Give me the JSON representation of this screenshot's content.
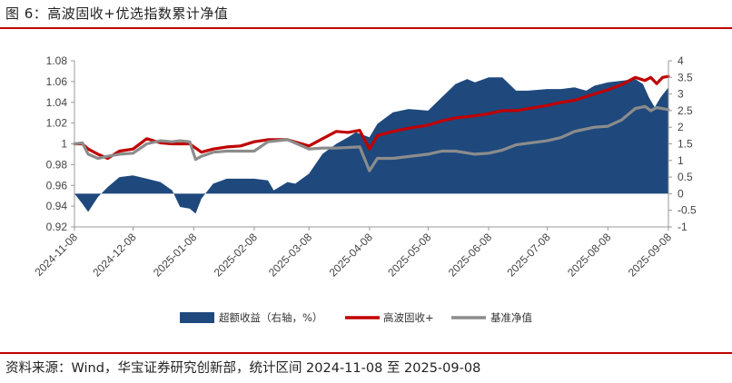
{
  "title": "图 6：高波固收+优选指数累计净值",
  "source": "资料来源：Wind，华宝证券研究创新部，统计区间 2024-11-08 至 2025-09-08",
  "colors": {
    "excess": "#1f497d",
    "fund": "#c00000",
    "benchmark": "#8c8c8c",
    "accent": "#c00000"
  },
  "chart_data": {
    "type": "line",
    "x_ticks": [
      "2024-11-08",
      "2024-12-08",
      "2025-01-08",
      "2025-02-08",
      "2025-03-08",
      "2025-04-08",
      "2025-05-08",
      "2025-06-08",
      "2025-07-08",
      "2025-08-08",
      "2025-09-08"
    ],
    "y_left": {
      "ylim": [
        0.92,
        1.08
      ],
      "ticks": [
        "0.92",
        "0.94",
        "0.96",
        "0.98",
        "1",
        "1.02",
        "1.04",
        "1.06",
        "1.08"
      ]
    },
    "y_right": {
      "ylim": [
        -1,
        4
      ],
      "ticks": [
        "-1",
        "-0.5",
        "0",
        "0.5",
        "1",
        "1.5",
        "2",
        "2.5",
        "3",
        "3.5",
        "4"
      ]
    },
    "series": [
      {
        "name": "超额收益（右轴，%）",
        "type": "area",
        "axis": "right",
        "points": [
          [
            "2024-11-08",
            0
          ],
          [
            "2024-11-12",
            -0.3
          ],
          [
            "2024-11-15",
            -0.55
          ],
          [
            "2024-11-20",
            -0.1
          ],
          [
            "2024-11-25",
            0.2
          ],
          [
            "2024-12-01",
            0.5
          ],
          [
            "2024-12-08",
            0.55
          ],
          [
            "2024-12-15",
            0.45
          ],
          [
            "2024-12-22",
            0.35
          ],
          [
            "2024-12-28",
            0.1
          ],
          [
            "2025-01-01",
            -0.4
          ],
          [
            "2025-01-06",
            -0.45
          ],
          [
            "2025-01-09",
            -0.6
          ],
          [
            "2025-01-12",
            -0.15
          ],
          [
            "2025-01-18",
            0.3
          ],
          [
            "2025-01-25",
            0.45
          ],
          [
            "2025-02-01",
            0.45
          ],
          [
            "2025-02-08",
            0.45
          ],
          [
            "2025-02-15",
            0.4
          ],
          [
            "2025-02-18",
            0.1
          ],
          [
            "2025-02-25",
            0.35
          ],
          [
            "2025-03-01",
            0.3
          ],
          [
            "2025-03-08",
            0.6
          ],
          [
            "2025-03-15",
            1.2
          ],
          [
            "2025-03-22",
            1.5
          ],
          [
            "2025-03-28",
            1.7
          ],
          [
            "2025-04-01",
            1.85
          ],
          [
            "2025-04-08",
            1.7
          ],
          [
            "2025-04-12",
            2.1
          ],
          [
            "2025-04-20",
            2.45
          ],
          [
            "2025-04-28",
            2.55
          ],
          [
            "2025-05-08",
            2.5
          ],
          [
            "2025-05-15",
            2.9
          ],
          [
            "2025-05-22",
            3.3
          ],
          [
            "2025-05-28",
            3.45
          ],
          [
            "2025-06-01",
            3.35
          ],
          [
            "2025-06-08",
            3.5
          ],
          [
            "2025-06-15",
            3.5
          ],
          [
            "2025-06-22",
            3.1
          ],
          [
            "2025-06-28",
            3.1
          ],
          [
            "2025-07-08",
            3.15
          ],
          [
            "2025-07-15",
            3.15
          ],
          [
            "2025-07-22",
            3.2
          ],
          [
            "2025-07-28",
            3.1
          ],
          [
            "2025-08-01",
            3.25
          ],
          [
            "2025-08-08",
            3.35
          ],
          [
            "2025-08-15",
            3.4
          ],
          [
            "2025-08-22",
            3.45
          ],
          [
            "2025-08-26",
            3.3
          ],
          [
            "2025-08-29",
            2.9
          ],
          [
            "2025-09-01",
            2.6
          ],
          [
            "2025-09-04",
            2.9
          ],
          [
            "2025-09-08",
            3.2
          ]
        ]
      },
      {
        "name": "高波固收+",
        "type": "line",
        "axis": "left",
        "points": [
          [
            "2024-11-08",
            1.0
          ],
          [
            "2024-11-12",
            1.0
          ],
          [
            "2024-11-15",
            0.995
          ],
          [
            "2024-11-20",
            0.99
          ],
          [
            "2024-11-25",
            0.986
          ],
          [
            "2024-12-01",
            0.993
          ],
          [
            "2024-12-08",
            0.995
          ],
          [
            "2024-12-15",
            1.005
          ],
          [
            "2024-12-22",
            1.001
          ],
          [
            "2024-12-28",
            1.0
          ],
          [
            "2025-01-06",
            1.0
          ],
          [
            "2025-01-12",
            0.992
          ],
          [
            "2025-01-18",
            0.995
          ],
          [
            "2025-01-25",
            0.997
          ],
          [
            "2025-02-01",
            0.998
          ],
          [
            "2025-02-08",
            1.002
          ],
          [
            "2025-02-15",
            1.004
          ],
          [
            "2025-02-25",
            1.004
          ],
          [
            "2025-03-08",
            0.998
          ],
          [
            "2025-03-15",
            1.005
          ],
          [
            "2025-03-22",
            1.012
          ],
          [
            "2025-03-28",
            1.011
          ],
          [
            "2025-04-03",
            1.013
          ],
          [
            "2025-04-08",
            0.995
          ],
          [
            "2025-04-12",
            1.008
          ],
          [
            "2025-04-20",
            1.012
          ],
          [
            "2025-04-28",
            1.015
          ],
          [
            "2025-05-08",
            1.018
          ],
          [
            "2025-05-15",
            1.022
          ],
          [
            "2025-05-22",
            1.025
          ],
          [
            "2025-06-01",
            1.027
          ],
          [
            "2025-06-08",
            1.029
          ],
          [
            "2025-06-15",
            1.032
          ],
          [
            "2025-06-22",
            1.032
          ],
          [
            "2025-07-08",
            1.037
          ],
          [
            "2025-07-15",
            1.04
          ],
          [
            "2025-07-22",
            1.042
          ],
          [
            "2025-08-01",
            1.048
          ],
          [
            "2025-08-08",
            1.052
          ],
          [
            "2025-08-15",
            1.057
          ],
          [
            "2025-08-22",
            1.064
          ],
          [
            "2025-08-27",
            1.061
          ],
          [
            "2025-08-30",
            1.064
          ],
          [
            "2025-09-02",
            1.058
          ],
          [
            "2025-09-05",
            1.064
          ],
          [
            "2025-09-08",
            1.065
          ]
        ]
      },
      {
        "name": "基准净值",
        "type": "line",
        "axis": "left",
        "points": [
          [
            "2024-11-08",
            1.0
          ],
          [
            "2024-11-12",
            1.001
          ],
          [
            "2024-11-15",
            0.99
          ],
          [
            "2024-11-20",
            0.986
          ],
          [
            "2024-11-25",
            0.988
          ],
          [
            "2024-12-01",
            0.99
          ],
          [
            "2024-12-08",
            0.991
          ],
          [
            "2024-12-15",
            1.0
          ],
          [
            "2024-12-22",
            1.003
          ],
          [
            "2024-12-28",
            1.002
          ],
          [
            "2025-01-01",
            1.003
          ],
          [
            "2025-01-06",
            1.002
          ],
          [
            "2025-01-09",
            0.985
          ],
          [
            "2025-01-12",
            0.988
          ],
          [
            "2025-01-18",
            0.992
          ],
          [
            "2025-01-25",
            0.993
          ],
          [
            "2025-02-08",
            0.993
          ],
          [
            "2025-02-15",
            1.002
          ],
          [
            "2025-02-25",
            1.004
          ],
          [
            "2025-03-08",
            0.995
          ],
          [
            "2025-03-15",
            0.996
          ],
          [
            "2025-03-22",
            0.996
          ],
          [
            "2025-04-03",
            0.997
          ],
          [
            "2025-04-08",
            0.974
          ],
          [
            "2025-04-12",
            0.986
          ],
          [
            "2025-04-20",
            0.986
          ],
          [
            "2025-05-08",
            0.99
          ],
          [
            "2025-05-15",
            0.993
          ],
          [
            "2025-05-22",
            0.993
          ],
          [
            "2025-06-01",
            0.99
          ],
          [
            "2025-06-08",
            0.991
          ],
          [
            "2025-06-15",
            0.994
          ],
          [
            "2025-06-22",
            0.999
          ],
          [
            "2025-07-08",
            1.003
          ],
          [
            "2025-07-15",
            1.006
          ],
          [
            "2025-07-22",
            1.012
          ],
          [
            "2025-08-01",
            1.016
          ],
          [
            "2025-08-08",
            1.017
          ],
          [
            "2025-08-15",
            1.023
          ],
          [
            "2025-08-22",
            1.034
          ],
          [
            "2025-08-27",
            1.036
          ],
          [
            "2025-08-30",
            1.032
          ],
          [
            "2025-09-02",
            1.035
          ],
          [
            "2025-09-08",
            1.033
          ]
        ]
      }
    ],
    "legend_position": "bottom",
    "grid": false
  }
}
